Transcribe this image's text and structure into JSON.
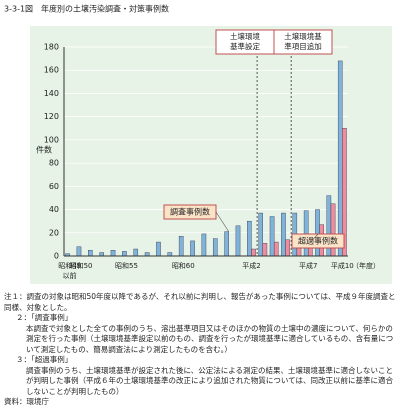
{
  "chart_data": {
    "type": "bar",
    "title": "3-3-1図　年度別の土壌汚染調査・対策事例数",
    "ylabel": "件数",
    "xlabel": "（年度）",
    "categories": [
      "昭和49",
      "昭和50",
      null,
      null,
      null,
      "昭和55",
      null,
      null,
      null,
      null,
      "昭和60",
      null,
      null,
      null,
      null,
      null,
      "平成2",
      null,
      null,
      null,
      null,
      "平成7",
      null,
      null,
      "平成10"
    ],
    "first_category_note": "以前",
    "series": [
      {
        "name": "調査事例数",
        "color": "#7fb3d8",
        "values": [
          2,
          8,
          5,
          3,
          5,
          4,
          6,
          3,
          12,
          3,
          17,
          13,
          19,
          15,
          21,
          26,
          30,
          37,
          34,
          37,
          37,
          39,
          40,
          52,
          168
        ]
      },
      {
        "name": "超過事例数",
        "color": "#f08c9c",
        "values": [
          0,
          0,
          0,
          0,
          0,
          0,
          0,
          0,
          0,
          0,
          0,
          0,
          0,
          0,
          0,
          0,
          6,
          11,
          12,
          14,
          16,
          12,
          27,
          45,
          110
        ]
      }
    ],
    "annotations": [
      "土壌環境基準設定",
      "土壌環境基準項目追加"
    ],
    "ylim": [
      0,
      180
    ],
    "yticks": [
      0,
      20,
      40,
      60,
      80,
      100,
      120,
      140,
      160,
      180
    ],
    "notes": [
      "注１：調査の対象は昭和50年度以降であるが、それ以前に判明し、報告があった事例については、平成９年度調査と同様、対象とした。",
      "２：「調査事例」",
      "本調査で対象とした全ての事例のうち、溶出基準項目又はそのほかの物質の土壌中の濃度について、何らかの測定を行った事例（土壌環境基準設定以前のもの、調査を行ったが環境基準に適合しているもの、含有量について測定したもの、簡易調査法により測定したものを含む。）",
      "３：「超過事例」",
      "調査事例のうち、土壌環境基準が設定された後に、公定法による測定の結果、土壌環境基準に適合しないことが判明した事例（平成６年の土壌環境基準の改正により追加された物質については、同改正以前に基準に適合しないことが判明したもの）",
      "資料：環境庁"
    ]
  }
}
